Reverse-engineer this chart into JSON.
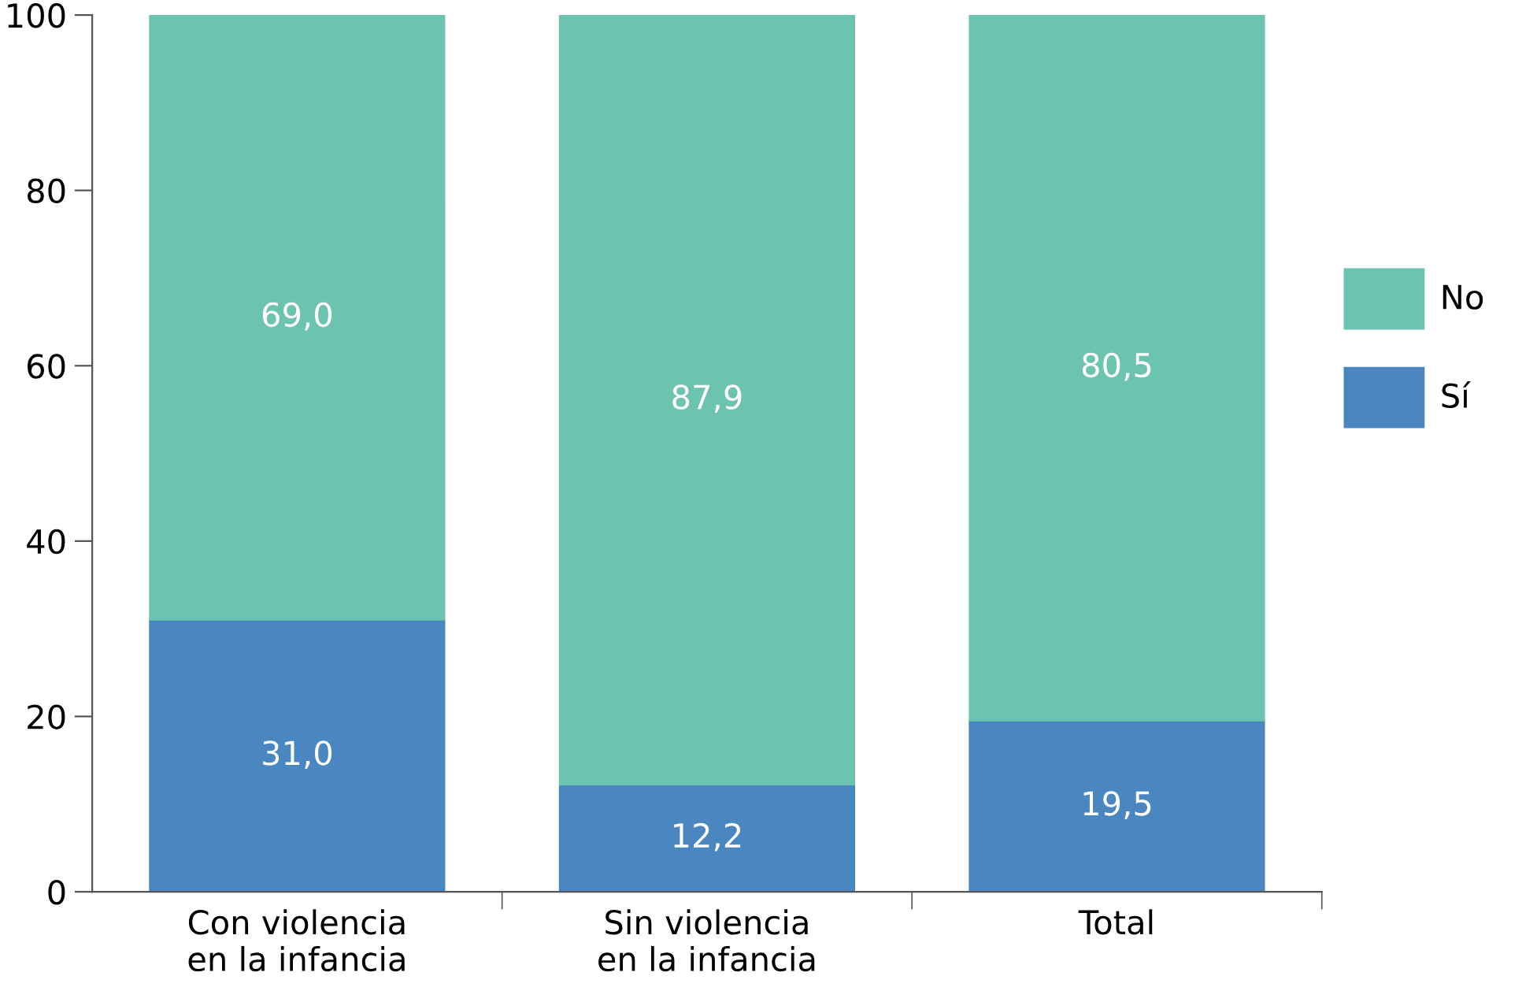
{
  "chart_data": {
    "type": "bar",
    "stacked": true,
    "categories": [
      "Con violencia\nen la infancia",
      "Sin violencia\nen la infancia",
      "Total"
    ],
    "series": [
      {
        "name": "Sí",
        "color": "#4a86c0",
        "values": [
          31.0,
          12.2,
          19.5
        ],
        "value_labels": [
          "31,0",
          "12,2",
          "19,5"
        ]
      },
      {
        "name": "No",
        "color": "#6cc3b0",
        "values": [
          69.0,
          87.9,
          80.5
        ],
        "value_labels": [
          "69,0",
          "87,9",
          "80,5"
        ]
      }
    ],
    "ylim": [
      0,
      100
    ],
    "yticks": [
      0,
      20,
      40,
      60,
      80,
      100
    ],
    "grid": false,
    "legend": "right"
  }
}
